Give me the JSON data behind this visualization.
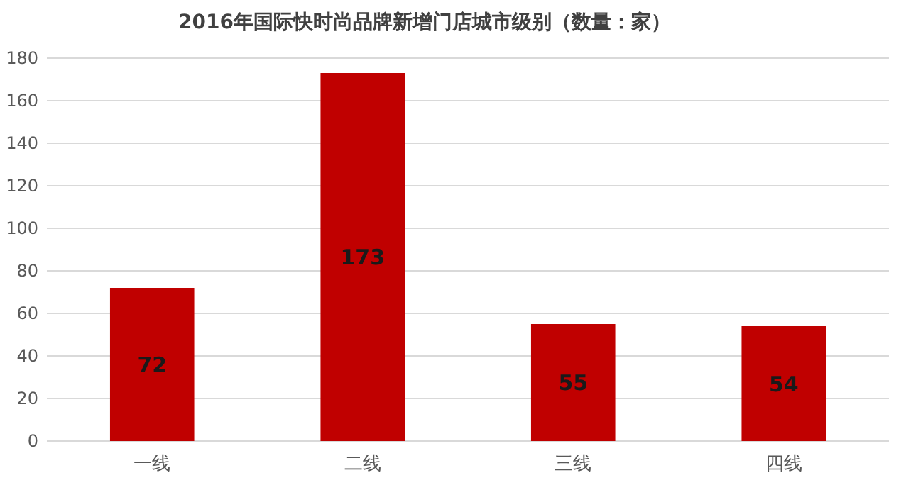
{
  "chart_data": {
    "type": "bar",
    "title": "2016年国际快时尚品牌新增门店城市级别（数量：家）",
    "categories": [
      "一线",
      "二线",
      "三线",
      "四线"
    ],
    "values": [
      72,
      173,
      55,
      54
    ],
    "color": "#c00000",
    "ylim": [
      0,
      180
    ],
    "yticks": [
      0,
      20,
      40,
      60,
      80,
      100,
      120,
      140,
      160,
      180
    ],
    "grid": "y",
    "data_labels": true
  }
}
